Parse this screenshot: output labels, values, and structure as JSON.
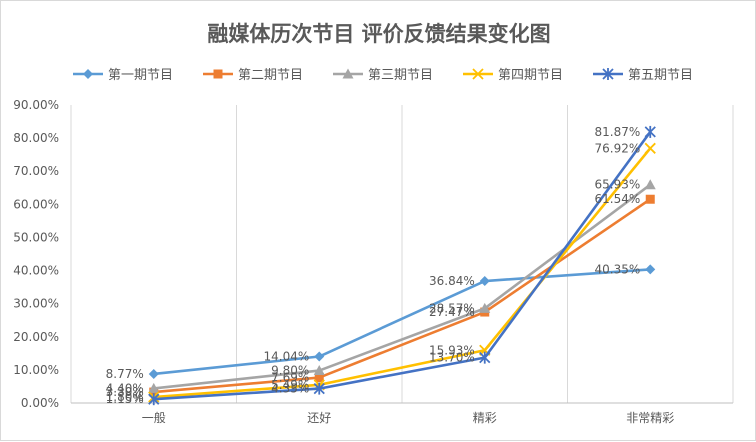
{
  "chart_data": {
    "type": "line",
    "title": "融媒体历次节目 评价反馈结果变化图",
    "categories": [
      "一般",
      "还好",
      "精彩",
      "非常精彩"
    ],
    "ylim": [
      0,
      90
    ],
    "y_ticks": [
      0,
      10,
      20,
      30,
      40,
      50,
      60,
      70,
      80,
      90
    ],
    "y_tick_labels": [
      "0.00%",
      "10.00%",
      "20.00%",
      "30.00%",
      "40.00%",
      "50.00%",
      "60.00%",
      "70.00%",
      "80.00%",
      "90.00%"
    ],
    "grid": "vertical",
    "legend_position": "top",
    "series": [
      {
        "name": "第一期节目",
        "values": [
          8.77,
          14.04,
          36.84,
          40.35
        ],
        "labels": [
          "8.77%",
          "14.04%",
          "36.84%",
          "40.35%"
        ],
        "color": "#5b9bd5",
        "marker": "diamond"
      },
      {
        "name": "第二期节目",
        "values": [
          3.3,
          7.69,
          27.47,
          61.54
        ],
        "labels": [
          "3.30%",
          "7.69%",
          "27.47%",
          "61.54%"
        ],
        "color": "#ed7d31",
        "marker": "square"
      },
      {
        "name": "第三期节目",
        "values": [
          4.4,
          9.8,
          28.57,
          65.93
        ],
        "labels": [
          "4.40%",
          "9.80%",
          "28.57%",
          "65.93%"
        ],
        "color": "#a5a5a5",
        "marker": "triangle"
      },
      {
        "name": "第四期节目",
        "values": [
          1.8,
          5.49,
          15.93,
          76.92
        ],
        "labels": [
          "1.80%",
          "5.49%",
          "15.93%",
          "76.92%"
        ],
        "color": "#ffc000",
        "marker": "x"
      },
      {
        "name": "第五期节目",
        "values": [
          1.15,
          4.35,
          13.7,
          81.87
        ],
        "labels": [
          "1.15%",
          "4.35%",
          "13.70%",
          "81.87%"
        ],
        "color": "#4472c4",
        "marker": "star"
      }
    ]
  }
}
